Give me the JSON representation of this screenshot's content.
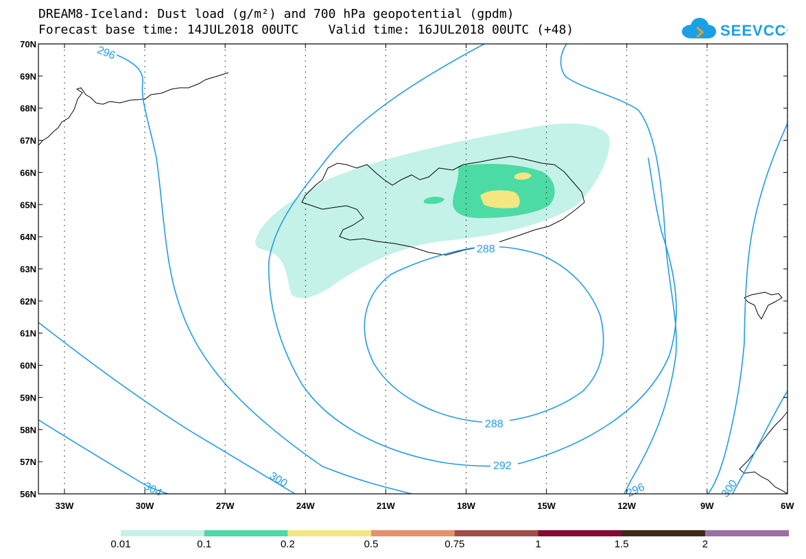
{
  "title_line1": "DREAM8-Iceland: Dust load (g/m²) and 700 hPa geopotential (gpdm)",
  "title_line2": "Forecast base time: 14JUL2018 00UTC    Valid time: 16JUL2018 00UTC (+48)",
  "logo_text": "SEEVCCC",
  "lat_labels": [
    "70N",
    "69N",
    "68N",
    "67N",
    "66N",
    "65N",
    "64N",
    "63N",
    "62N",
    "61N",
    "60N",
    "59N",
    "58N",
    "57N",
    "56N"
  ],
  "lon_labels": [
    "33W",
    "30W",
    "27W",
    "24W",
    "21W",
    "18W",
    "15W",
    "12W",
    "9W",
    "6W"
  ],
  "contour_labels": [
    "296",
    "288",
    "288",
    "292",
    "296",
    "300",
    "300",
    "304"
  ],
  "colorbar": {
    "labels": [
      "0.01",
      "0.1",
      "0.2",
      "0.5",
      "0.75",
      "1",
      "1.5",
      "2"
    ],
    "colors": [
      "#c4f2e8",
      "#4ddba5",
      "#f4e782",
      "#e8906a",
      "#a24e48",
      "#870a30",
      "#3e2a1a",
      "#9a6fa6"
    ]
  },
  "colors": {
    "contour": "#1e9bea",
    "dust_low": "#c4f2e8",
    "dust_mid": "#4ddba5",
    "dust_high": "#f4e782"
  }
}
